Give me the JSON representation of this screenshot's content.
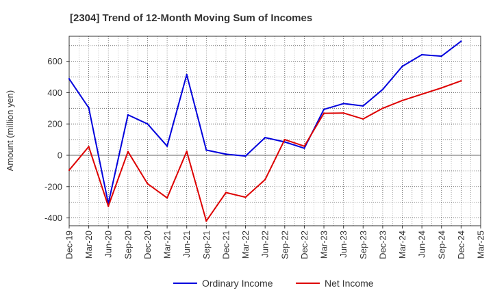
{
  "chart_data": {
    "type": "line",
    "title": "[2304]  Trend of 12-Month Moving Sum of Incomes",
    "xlabel": "",
    "ylabel": "Amount (million yen)",
    "ylim": [
      -450,
      760
    ],
    "yticks": [
      -400,
      -200,
      0,
      200,
      400,
      600
    ],
    "categories": [
      "Dec-19",
      "Mar-20",
      "Jun-20",
      "Sep-20",
      "Dec-20",
      "Mar-21",
      "Jun-21",
      "Sep-21",
      "Dec-21",
      "Mar-22",
      "Jun-22",
      "Sep-22",
      "Dec-22",
      "Mar-23",
      "Jun-23",
      "Sep-23",
      "Dec-23",
      "Mar-24",
      "Jun-24",
      "Sep-24",
      "Dec-24",
      "Mar-25"
    ],
    "series": [
      {
        "name": "Ordinary Income",
        "color": "#0000dd",
        "values": [
          488,
          303,
          -308,
          258,
          200,
          58,
          515,
          33,
          7,
          -5,
          113,
          85,
          45,
          293,
          330,
          315,
          420,
          568,
          642,
          633,
          728,
          null
        ]
      },
      {
        "name": "Net Income",
        "color": "#dd0000",
        "values": [
          -95,
          55,
          -325,
          23,
          -182,
          -272,
          25,
          -420,
          -238,
          -268,
          -155,
          100,
          58,
          268,
          270,
          232,
          300,
          350,
          390,
          430,
          475,
          null
        ]
      }
    ],
    "grid": true,
    "legend_position": "bottom"
  }
}
